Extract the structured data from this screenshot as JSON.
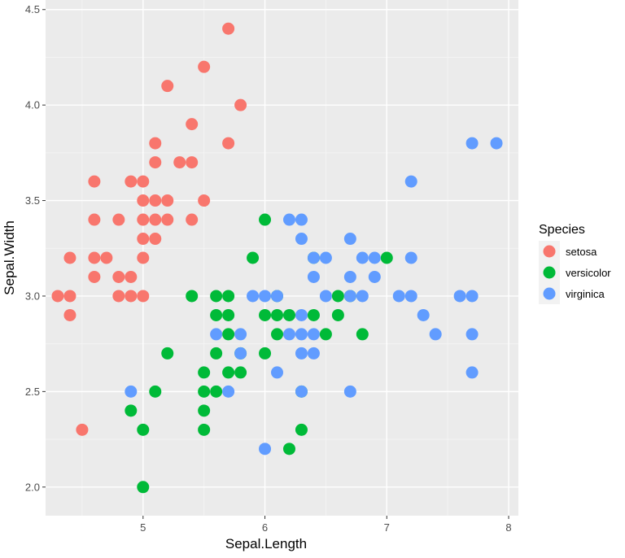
{
  "chart_data": {
    "type": "scatter",
    "xlabel": "Sepal.Length",
    "ylabel": "Sepal.Width",
    "xlim": [
      4.2,
      8.08
    ],
    "ylim": [
      1.85,
      4.55
    ],
    "x_ticks": [
      "5",
      "6",
      "7",
      "8"
    ],
    "y_ticks": [
      "2.0",
      "2.5",
      "3.0",
      "3.5",
      "4.0",
      "4.5"
    ],
    "grid": true,
    "legend": {
      "title": "Species",
      "placement": "right"
    },
    "series": [
      {
        "name": "setosa",
        "color": "#F8766D",
        "points": [
          [
            4.3,
            3.0
          ],
          [
            4.4,
            2.9
          ],
          [
            4.4,
            3.0
          ],
          [
            4.4,
            3.2
          ],
          [
            4.5,
            2.3
          ],
          [
            4.6,
            3.1
          ],
          [
            4.6,
            3.2
          ],
          [
            4.6,
            3.4
          ],
          [
            4.6,
            3.6
          ],
          [
            4.7,
            3.2
          ],
          [
            4.8,
            3.0
          ],
          [
            4.8,
            3.1
          ],
          [
            4.8,
            3.4
          ],
          [
            4.9,
            3.0
          ],
          [
            4.9,
            3.1
          ],
          [
            4.9,
            3.6
          ],
          [
            5.0,
            3.0
          ],
          [
            5.0,
            3.2
          ],
          [
            5.0,
            3.3
          ],
          [
            5.0,
            3.4
          ],
          [
            5.0,
            3.5
          ],
          [
            5.0,
            3.6
          ],
          [
            5.1,
            3.3
          ],
          [
            5.1,
            3.4
          ],
          [
            5.1,
            3.5
          ],
          [
            5.1,
            3.7
          ],
          [
            5.1,
            3.8
          ],
          [
            5.2,
            3.4
          ],
          [
            5.2,
            3.5
          ],
          [
            5.2,
            4.1
          ],
          [
            5.3,
            3.7
          ],
          [
            5.4,
            3.4
          ],
          [
            5.4,
            3.7
          ],
          [
            5.4,
            3.9
          ],
          [
            5.5,
            3.5
          ],
          [
            5.5,
            4.2
          ],
          [
            5.7,
            3.8
          ],
          [
            5.7,
            4.4
          ],
          [
            5.8,
            4.0
          ]
        ]
      },
      {
        "name": "versicolor",
        "color": "#00BA38",
        "points": [
          [
            4.9,
            2.4
          ],
          [
            5.0,
            2.0
          ],
          [
            5.0,
            2.3
          ],
          [
            5.1,
            2.5
          ],
          [
            5.2,
            2.7
          ],
          [
            5.4,
            3.0
          ],
          [
            5.5,
            2.3
          ],
          [
            5.5,
            2.4
          ],
          [
            5.5,
            2.5
          ],
          [
            5.5,
            2.6
          ],
          [
            5.6,
            2.5
          ],
          [
            5.6,
            2.7
          ],
          [
            5.6,
            2.9
          ],
          [
            5.6,
            3.0
          ],
          [
            5.7,
            2.6
          ],
          [
            5.7,
            2.8
          ],
          [
            5.7,
            2.9
          ],
          [
            5.7,
            3.0
          ],
          [
            5.8,
            2.6
          ],
          [
            5.8,
            2.7
          ],
          [
            5.9,
            3.2
          ],
          [
            6.0,
            2.7
          ],
          [
            6.0,
            2.9
          ],
          [
            6.0,
            3.4
          ],
          [
            6.1,
            2.8
          ],
          [
            6.1,
            2.9
          ],
          [
            6.1,
            3.0
          ],
          [
            6.2,
            2.2
          ],
          [
            6.2,
            2.9
          ],
          [
            6.3,
            2.3
          ],
          [
            6.3,
            2.5
          ],
          [
            6.4,
            2.9
          ],
          [
            6.4,
            3.2
          ],
          [
            6.5,
            2.8
          ],
          [
            6.6,
            2.9
          ],
          [
            6.6,
            3.0
          ],
          [
            6.7,
            3.0
          ],
          [
            6.8,
            2.8
          ],
          [
            7.0,
            3.2
          ]
        ]
      },
      {
        "name": "virginica",
        "color": "#619CFF",
        "points": [
          [
            4.9,
            2.5
          ],
          [
            5.6,
            2.8
          ],
          [
            5.7,
            2.5
          ],
          [
            5.8,
            2.7
          ],
          [
            5.8,
            2.8
          ],
          [
            5.9,
            3.0
          ],
          [
            6.0,
            2.2
          ],
          [
            6.0,
            3.0
          ],
          [
            6.1,
            2.6
          ],
          [
            6.1,
            3.0
          ],
          [
            6.2,
            2.8
          ],
          [
            6.2,
            3.4
          ],
          [
            6.3,
            2.5
          ],
          [
            6.3,
            2.7
          ],
          [
            6.3,
            2.8
          ],
          [
            6.3,
            2.9
          ],
          [
            6.3,
            3.3
          ],
          [
            6.3,
            3.4
          ],
          [
            6.4,
            2.7
          ],
          [
            6.4,
            2.8
          ],
          [
            6.4,
            3.1
          ],
          [
            6.4,
            3.2
          ],
          [
            6.5,
            3.0
          ],
          [
            6.5,
            3.2
          ],
          [
            6.7,
            2.5
          ],
          [
            6.7,
            3.0
          ],
          [
            6.7,
            3.1
          ],
          [
            6.7,
            3.3
          ],
          [
            6.8,
            3.0
          ],
          [
            6.8,
            3.2
          ],
          [
            6.9,
            3.1
          ],
          [
            6.9,
            3.2
          ],
          [
            7.1,
            3.0
          ],
          [
            7.2,
            3.0
          ],
          [
            7.2,
            3.2
          ],
          [
            7.2,
            3.6
          ],
          [
            7.3,
            2.9
          ],
          [
            7.4,
            2.8
          ],
          [
            7.6,
            3.0
          ],
          [
            7.7,
            2.6
          ],
          [
            7.7,
            2.8
          ],
          [
            7.7,
            3.0
          ],
          [
            7.7,
            3.8
          ],
          [
            7.9,
            3.8
          ]
        ]
      }
    ]
  }
}
